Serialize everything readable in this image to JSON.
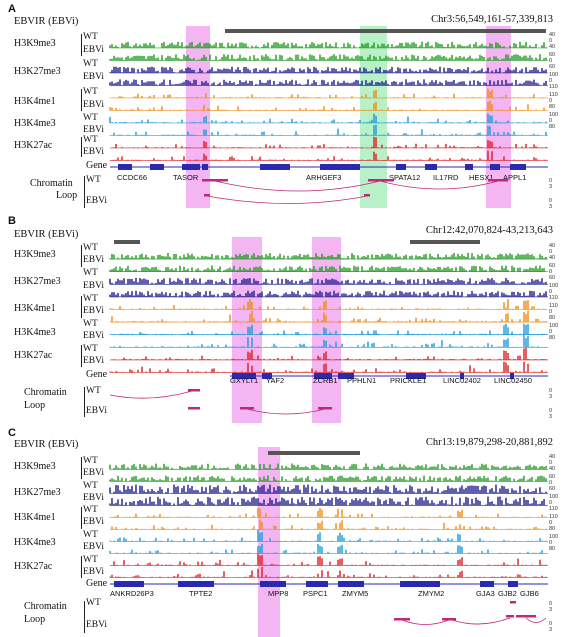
{
  "colors": {
    "H3K9me3": "#1e9a1e",
    "H3K27me3": "#1a1a8c",
    "H3K4me1": "#f08a10",
    "H3K4me3": "#1a9ad8",
    "H3K27ac": "#dd1a1a",
    "gene": "#2a2ab0",
    "loop": "#c0287a",
    "pink_highlight": "#f3b6f3",
    "green_highlight": "#b8f0c8",
    "ebvir_bar": "#555555"
  },
  "common": {
    "ebvir_label": "EBVIR (EBVi)",
    "wt": "WT",
    "ebvi": "EBVi",
    "gene_label": "Gene",
    "chromatin_label": "Chromatin",
    "loop_label": "Loop",
    "marks": [
      "H3K9me3",
      "H3K27me3",
      "H3K4me1",
      "H3K4me3",
      "H3K27ac"
    ],
    "scales": [
      [
        "40",
        "0",
        "40"
      ],
      [
        "60",
        "0",
        "60"
      ],
      [
        "100",
        "0",
        "110"
      ],
      [
        "110",
        "0",
        "80"
      ],
      [
        "100",
        "0",
        "80"
      ]
    ],
    "loop_scale": [
      "0",
      "3"
    ]
  },
  "panels": [
    {
      "label": "A",
      "coord": "Chr3:56,549,161-57,339,813",
      "genes": [
        "CCDC66",
        "TASOR",
        "ARHGEF3",
        "SPATA12",
        "IL17RD",
        "HESX1",
        "APPL1"
      ]
    },
    {
      "label": "B",
      "coord": "Chr12:42,070,824-43,213,643",
      "genes": [
        "GXYLT1",
        "YAF2",
        "ZCRB1",
        "PPHLN1",
        "PRICKLE1",
        "LINC02402",
        "LINC02450"
      ]
    },
    {
      "label": "C",
      "coord": "Chr13:19,879,298-20,881,892",
      "genes": [
        "ANKRD26P3",
        "TPTE2",
        "MPP8",
        "PSPC1",
        "ZMYM5",
        "ZMYM2",
        "GJA3",
        "GJB2",
        "GJB6"
      ]
    }
  ]
}
